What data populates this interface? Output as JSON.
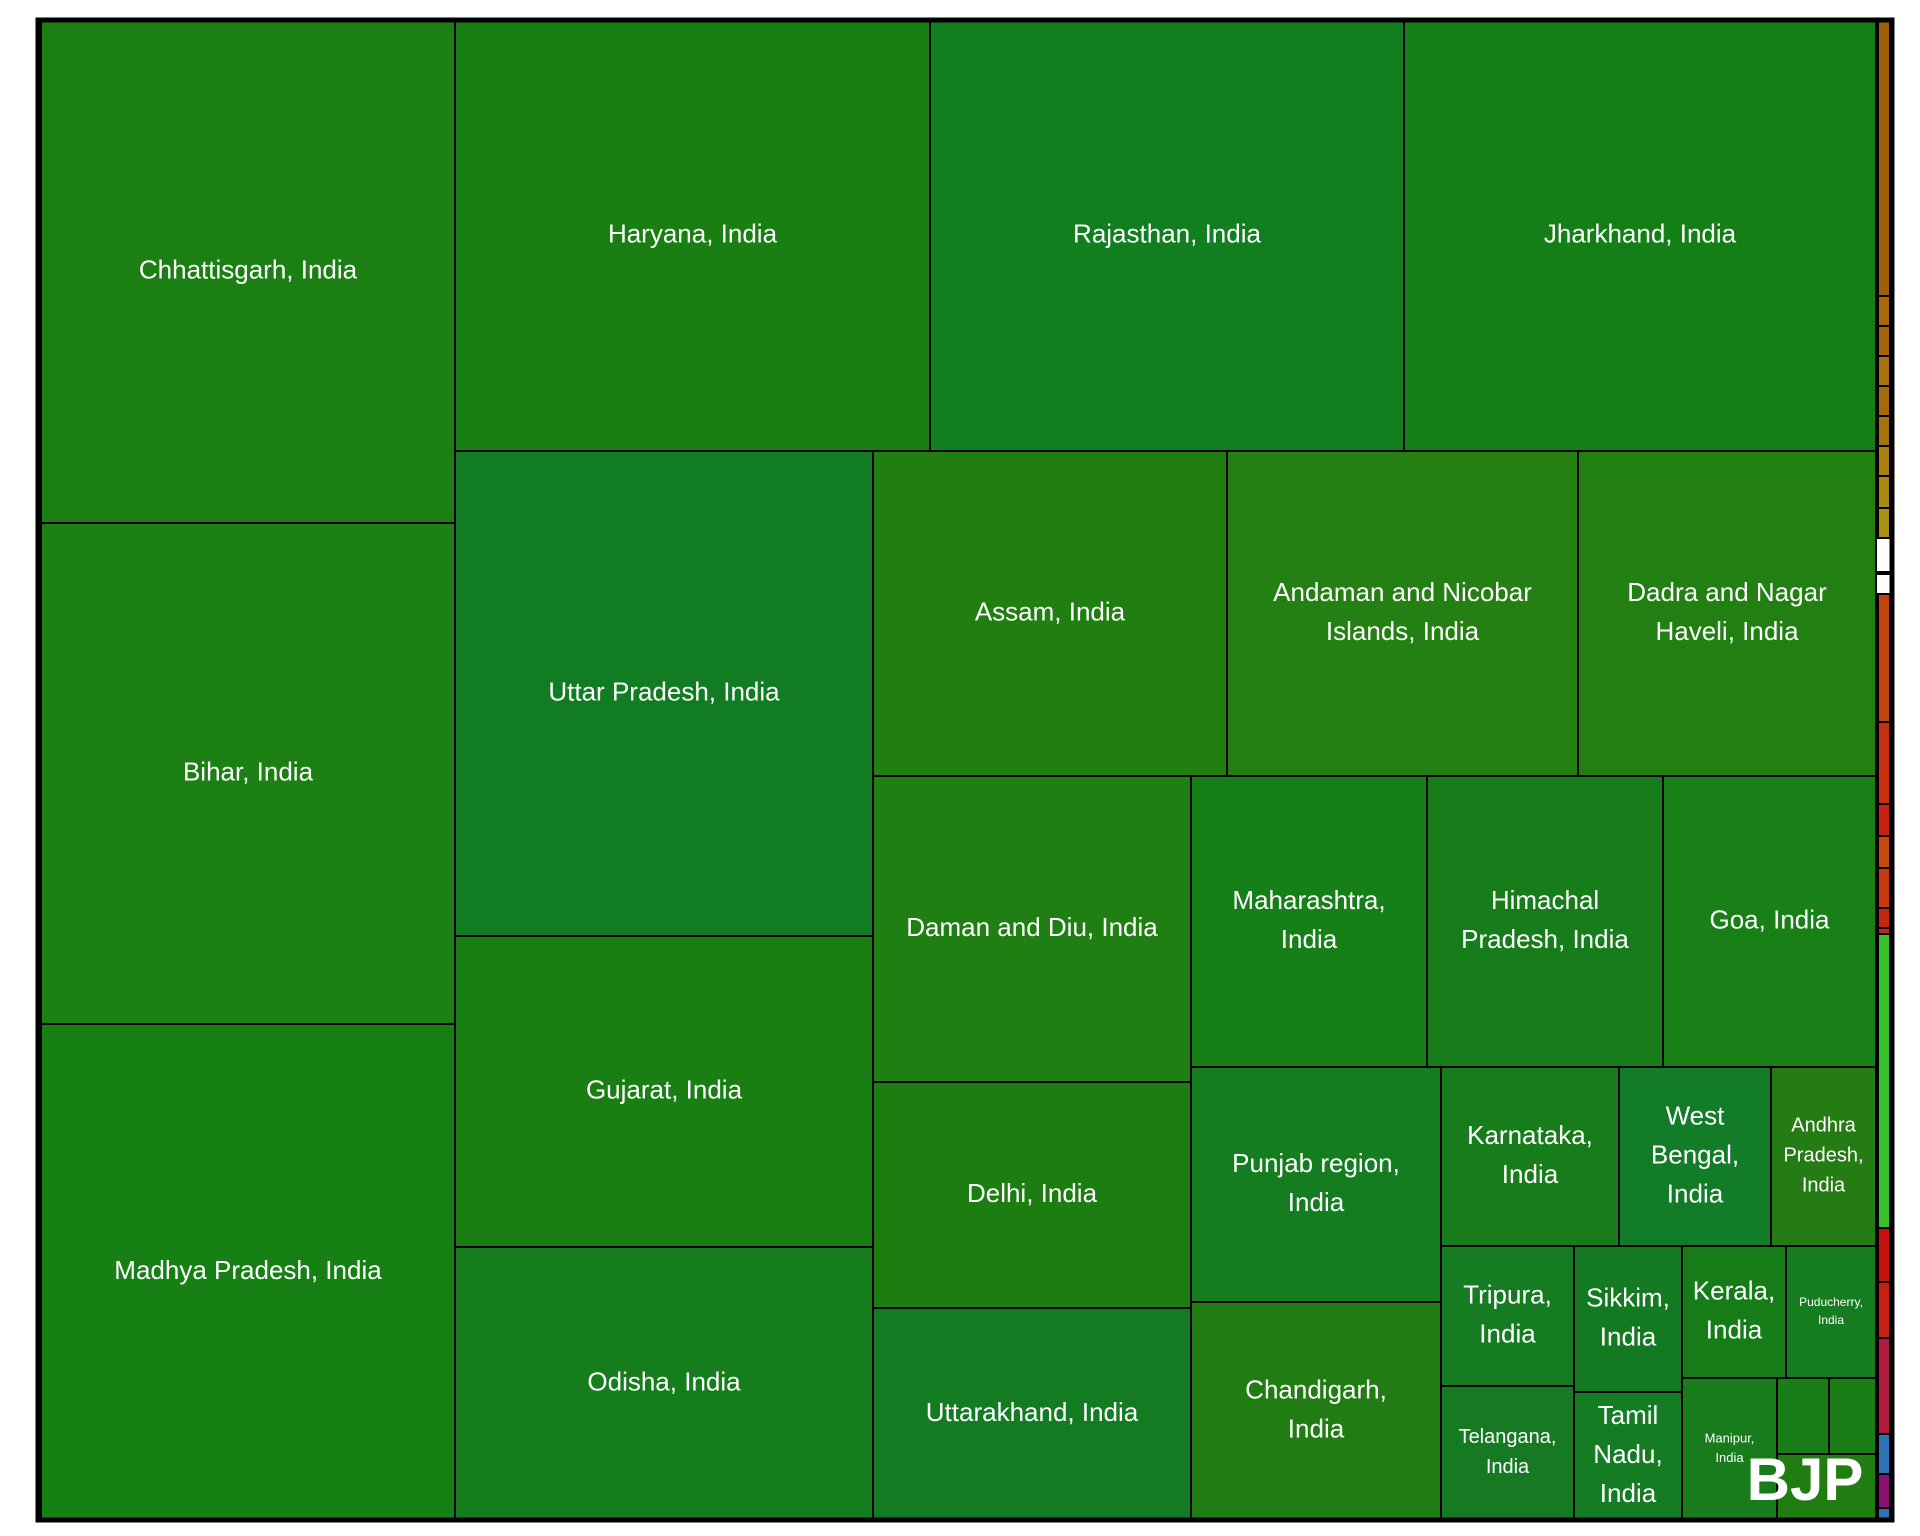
{
  "chart_data": {
    "type": "treemap",
    "title": "",
    "party_label": "BJP",
    "cells": [
      {
        "label": "Chhattisgarh, India",
        "color": "#1b7f14"
      },
      {
        "label": "Bihar, India",
        "color": "#1c8015"
      },
      {
        "label": "Madhya Pradesh, India",
        "color": "#178015"
      },
      {
        "label": "Haryana, India",
        "color": "#1a7f12"
      },
      {
        "label": "Rajasthan, India",
        "color": "#117f1f"
      },
      {
        "label": "Jharkhand, India",
        "color": "#147f16"
      },
      {
        "label": "Uttar Pradesh, India",
        "color": "#127c22"
      },
      {
        "label": "Gujarat, India",
        "color": "#1a7f13"
      },
      {
        "label": "Odisha, India",
        "color": "#167d1c"
      },
      {
        "label": "Assam, India",
        "color": "#217f12"
      },
      {
        "label": "Andaman and Nicobar Islands, India",
        "color": "#248012"
      },
      {
        "label": "Dadra and Nagar Haveli, India",
        "color": "#228012"
      },
      {
        "label": "Daman and Diu, India",
        "color": "#1f7f12"
      },
      {
        "label": "Delhi, India",
        "color": "#1c7e11"
      },
      {
        "label": "Uttarakhand, India",
        "color": "#137c23"
      },
      {
        "label": "Maharashtra, India",
        "color": "#167f17"
      },
      {
        "label": "Himachal Pradesh, India",
        "color": "#177d1a"
      },
      {
        "label": "Goa, India",
        "color": "#188016"
      },
      {
        "label": "Punjab region, India",
        "color": "#137d1f"
      },
      {
        "label": "Chandigarh, India",
        "color": "#217d13"
      },
      {
        "label": "Karnataka, India",
        "color": "#167d1a"
      },
      {
        "label": "West Bengal, India",
        "color": "#137c28"
      },
      {
        "label": "Andhra Pradesh, India",
        "color": "#257b14"
      },
      {
        "label": "Tripura, India",
        "color": "#157c22"
      },
      {
        "label": "Sikkim, India",
        "color": "#147a22"
      },
      {
        "label": "Kerala, India",
        "color": "#167c18"
      },
      {
        "label": "Puducherry, India",
        "color": "#157d1f"
      },
      {
        "label": "Telangana, India",
        "color": "#167a23"
      },
      {
        "label": "Tamil Nadu, India",
        "color": "#147c22"
      },
      {
        "label": "Manipur, India",
        "color": "#187c1c"
      },
      {
        "label": "",
        "color": "#1a7e18"
      },
      {
        "label": "",
        "color": "#1b7d15"
      },
      {
        "label": "",
        "color": "#217c12"
      }
    ],
    "side_strip": [
      {
        "color": "#a06008"
      },
      {
        "color": "#a56b0b"
      },
      {
        "color": "#a3640a"
      },
      {
        "color": "#a8720c"
      },
      {
        "color": "#a56b0b"
      },
      {
        "color": "#a5730c"
      },
      {
        "color": "#a8800e"
      },
      {
        "color": "#a8880f"
      },
      {
        "color": "#a89010"
      },
      {
        "color": "#a88b10"
      },
      {
        "color": "#c4420c"
      },
      {
        "color": "#c8300e"
      },
      {
        "color": "#c8200f"
      },
      {
        "color": "#c9480c"
      },
      {
        "color": "#c8380d"
      },
      {
        "color": "#c02810"
      },
      {
        "color": "#c02810"
      },
      {
        "color": "#36c42a"
      },
      {
        "color": "#c8100f"
      },
      {
        "color": "#c8200f"
      },
      {
        "color": "#b01a3c"
      },
      {
        "color": "#2a73b5"
      },
      {
        "color": "#8a1070"
      },
      {
        "color": "#2a73b5"
      }
    ]
  }
}
